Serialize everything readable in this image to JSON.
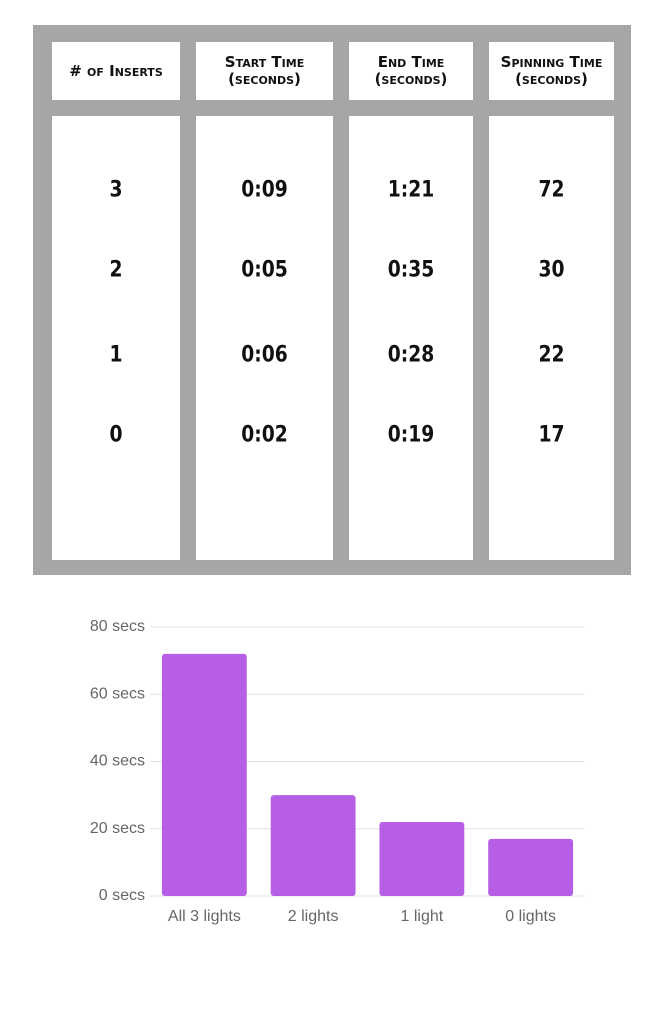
{
  "table": {
    "headers": [
      "# of Inserts",
      "Start Time (seconds)",
      "End Time (seconds)",
      "Spinning Time (seconds)"
    ],
    "rows": [
      [
        "3",
        "0:09",
        "1:21",
        "72"
      ],
      [
        "2",
        "0:05",
        "0:35",
        "30"
      ],
      [
        "1",
        "0:06",
        "0:28",
        "22"
      ],
      [
        "0",
        "0:02",
        "0:19",
        "17"
      ]
    ]
  },
  "chart_data": {
    "type": "bar",
    "categories": [
      "All 3 lights",
      "2 lights",
      "1 light",
      "0 lights"
    ],
    "values": [
      72,
      30,
      22,
      17
    ],
    "color": "#b65ee6",
    "ylim": [
      0,
      80
    ],
    "yticks": [
      {
        "value": 0,
        "label": "0 secs"
      },
      {
        "value": 20,
        "label": "20 secs"
      },
      {
        "value": 40,
        "label": "40 secs"
      },
      {
        "value": 60,
        "label": "60 secs"
      },
      {
        "value": 80,
        "label": "80 secs"
      }
    ],
    "grid": true
  }
}
